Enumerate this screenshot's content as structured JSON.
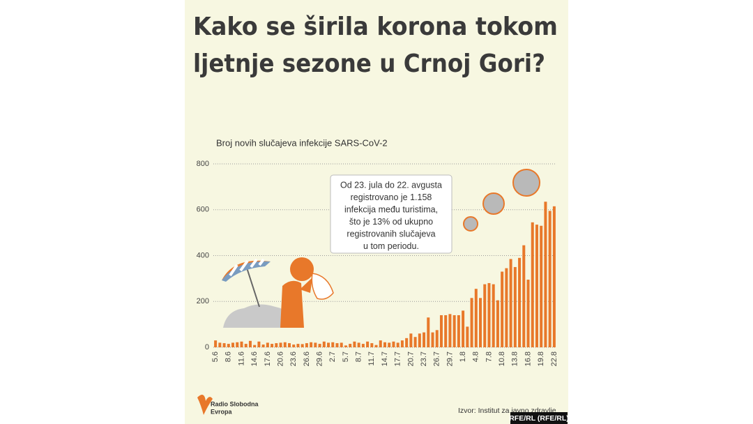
{
  "chart_data": {
    "type": "bar",
    "title": [
      "Kako se širila korona tokom",
      "ljetnje sezone u Crnoj Gori?"
    ],
    "subtitle": "Broj novih slučajeva infekcije SARS-CoV-2",
    "annotation": [
      "Od 23. jula do 22. avgusta",
      "registrovano je 1.158",
      "infekcija među turistima,",
      "što je 13% od ukupno",
      "registrovanih slučajeva",
      "u tom periodu."
    ],
    "categories": [
      "5.6",
      null,
      null,
      "8.6",
      null,
      null,
      "11.6",
      null,
      null,
      "14.6",
      null,
      null,
      "17.6",
      null,
      null,
      "20.6",
      null,
      null,
      "23.6",
      null,
      null,
      "26.6",
      null,
      null,
      "29.6",
      null,
      null,
      "2.7",
      null,
      null,
      "5.7",
      null,
      null,
      "8.7",
      null,
      null,
      "11.7",
      null,
      null,
      "14.7",
      null,
      null,
      "17.7",
      null,
      null,
      "20.7",
      null,
      null,
      "23.7",
      null,
      null,
      "26.7",
      null,
      null,
      "29.7",
      null,
      null,
      "1.8",
      null,
      null,
      "4.8",
      null,
      null,
      "7.8",
      null,
      null,
      "10.8",
      null,
      null,
      "13.8",
      null,
      null,
      "16.8",
      null,
      null,
      "19.8",
      null,
      null,
      "22.8"
    ],
    "values": [
      30,
      20,
      18,
      15,
      20,
      22,
      25,
      15,
      28,
      10,
      25,
      12,
      20,
      15,
      18,
      20,
      22,
      18,
      12,
      15,
      14,
      18,
      22,
      20,
      15,
      25,
      20,
      22,
      18,
      20,
      8,
      15,
      25,
      20,
      15,
      25,
      18,
      10,
      30,
      22,
      20,
      25,
      20,
      30,
      40,
      60,
      45,
      60,
      65,
      130,
      65,
      75,
      140,
      140,
      145,
      140,
      140,
      160,
      90,
      215,
      255,
      215,
      275,
      280,
      275,
      205,
      330,
      345,
      385,
      350,
      390,
      445,
      295,
      545,
      535,
      530,
      635,
      595,
      615
    ],
    "color": "#e8782a",
    "ylim": [
      0,
      800
    ],
    "yticks": [
      0,
      200,
      400,
      600,
      800
    ],
    "grid": true
  },
  "logo": [
    "Radio Slobodna",
    "Evropa"
  ],
  "source": "Izvor: Institut za javno zdravlje",
  "credit": "RFE/RL (RFE/RL)"
}
